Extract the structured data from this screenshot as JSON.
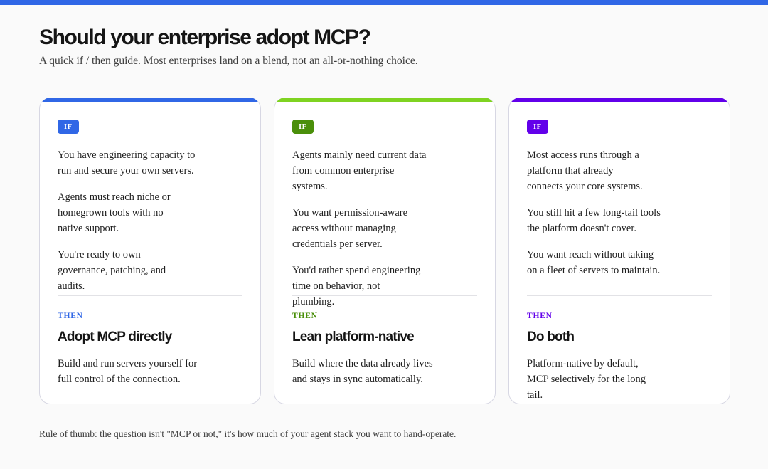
{
  "colors": {
    "top_bar": "#3067e6",
    "blue": "#3067e6",
    "green": "#7fd321",
    "green_text": "#4a8f0a",
    "purple": "#6200ea"
  },
  "header": {
    "title": "Should your enterprise adopt MCP?",
    "subtitle": "A quick if / then guide. Most enterprises land on a blend, not an all-or-nothing choice."
  },
  "cards": [
    {
      "if_label": "IF",
      "conditions": [
        "You have engineering capacity to run and secure your own servers.",
        "Agents must reach niche or homegrown tools with no native support.",
        "You're ready to own governance, patching, and audits."
      ],
      "then_label": "THEN",
      "outcome_title": "Adopt MCP directly",
      "outcome_desc": "Build and run servers yourself for full control of the connection."
    },
    {
      "if_label": "IF",
      "conditions": [
        "Agents mainly need current data from common enterprise systems.",
        "You want permission-aware access without managing credentials per server.",
        "You'd rather spend engineering time on behavior, not plumbing."
      ],
      "then_label": "THEN",
      "outcome_title": "Lean platform-native",
      "outcome_desc": "Build where the data already lives and stays in sync automatically."
    },
    {
      "if_label": "IF",
      "conditions": [
        "Most access runs through a platform that already connects your core systems.",
        "You still hit a few long-tail tools the platform doesn't cover.",
        "You want reach without taking on a fleet of servers to maintain."
      ],
      "then_label": "THEN",
      "outcome_title": "Do both",
      "outcome_desc": "Platform-native by default, MCP selectively for the long tail."
    }
  ],
  "footer": {
    "note": "Rule of thumb: the question isn't \"MCP or not,\" it's how much of your agent stack you want to hand-operate."
  }
}
